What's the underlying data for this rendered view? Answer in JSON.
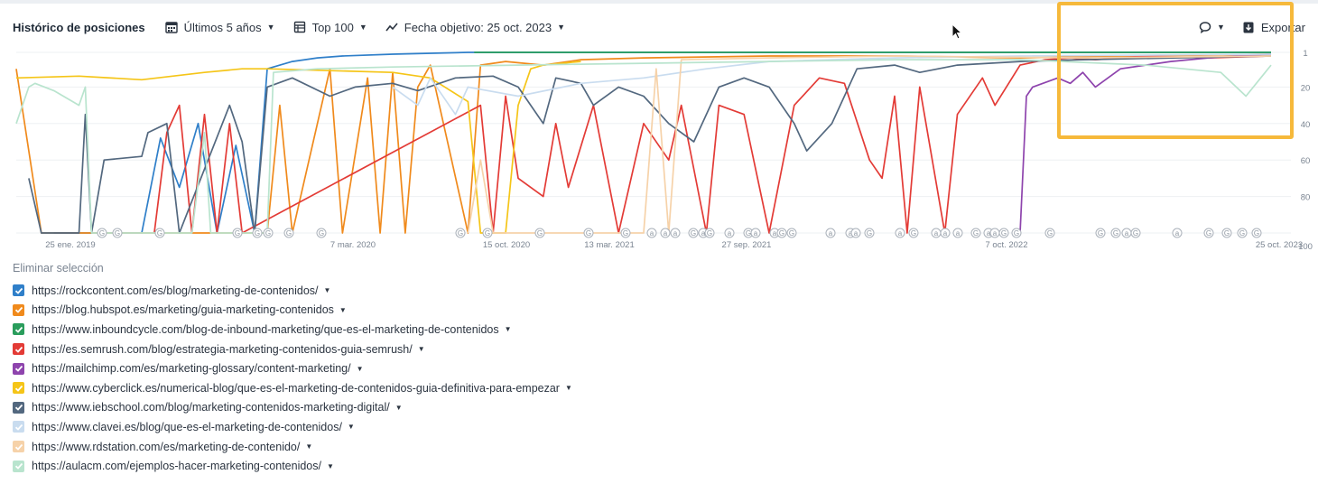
{
  "toolbar": {
    "title": "Histórico de posiciones",
    "period": "Últimos 5 años",
    "top": "Top 100",
    "target_date": "Fecha objetivo: 25 oct. 2023",
    "export_label": "Exportar",
    "icons": [
      "calendar-icon",
      "table-icon",
      "trend-icon",
      "comment-icon",
      "download-icon"
    ]
  },
  "chart_data": {
    "type": "line",
    "x_ticks": [
      "25 ene. 2019",
      "7 mar. 2020",
      "15 oct. 2020",
      "13 mar. 2021",
      "27 sep. 2021",
      "7 oct. 2022",
      "25 oct. 2023"
    ],
    "y_ticks": [
      "1",
      "20",
      "40",
      "60",
      "80",
      "100"
    ],
    "y_inverted": true,
    "ylim": [
      1,
      100
    ],
    "series": [
      {
        "name": "https://rockcontent.com/es/blog/marketing-de-contenidos/",
        "color": "#2f7fc9",
        "points": [
          [
            0.03,
            100
          ],
          [
            0.1,
            100
          ],
          [
            0.115,
            48
          ],
          [
            0.13,
            75
          ],
          [
            0.145,
            40
          ],
          [
            0.16,
            100
          ],
          [
            0.175,
            52
          ],
          [
            0.19,
            100
          ],
          [
            0.2,
            10
          ],
          [
            0.22,
            6
          ],
          [
            0.24,
            4
          ],
          [
            0.26,
            3
          ],
          [
            0.3,
            2
          ],
          [
            0.36,
            1
          ],
          [
            1,
            1
          ]
        ]
      },
      {
        "name": "https://blog.hubspot.es/marketing/guia-marketing-contenidos",
        "color": "#f08a1c",
        "points": [
          [
            0.0,
            10
          ],
          [
            0.02,
            100
          ],
          [
            0.2,
            100
          ],
          [
            0.21,
            30
          ],
          [
            0.22,
            100
          ],
          [
            0.25,
            10
          ],
          [
            0.26,
            100
          ],
          [
            0.28,
            15
          ],
          [
            0.29,
            100
          ],
          [
            0.3,
            12
          ],
          [
            0.31,
            100
          ],
          [
            0.32,
            20
          ],
          [
            0.33,
            8
          ],
          [
            0.36,
            100
          ],
          [
            0.37,
            8
          ],
          [
            0.39,
            6
          ],
          [
            0.42,
            8
          ],
          [
            0.45,
            5
          ],
          [
            0.5,
            4
          ],
          [
            0.6,
            3
          ],
          [
            0.7,
            3
          ],
          [
            0.8,
            4
          ],
          [
            0.9,
            3
          ],
          [
            1,
            2
          ]
        ]
      },
      {
        "name": "https://www.inboundcycle.com/blog-de-inbound-marketing/que-es-el-marketing-de-contenidos",
        "color": "#2a9d5c",
        "points": [
          [
            0.365,
            1
          ],
          [
            0.45,
            1
          ],
          [
            0.6,
            1
          ],
          [
            0.8,
            1
          ],
          [
            0.9,
            1
          ],
          [
            1,
            1
          ]
        ]
      },
      {
        "name": "https://es.semrush.com/blog/estrategia-marketing-contenidos-guia-semrush/",
        "color": "#e33b36",
        "points": [
          [
            0.11,
            100
          ],
          [
            0.12,
            45
          ],
          [
            0.13,
            30
          ],
          [
            0.14,
            100
          ],
          [
            0.15,
            35
          ],
          [
            0.16,
            100
          ],
          [
            0.17,
            40
          ],
          [
            0.18,
            100
          ],
          [
            0.37,
            30
          ],
          [
            0.38,
            100
          ],
          [
            0.39,
            25
          ],
          [
            0.4,
            70
          ],
          [
            0.42,
            80
          ],
          [
            0.43,
            40
          ],
          [
            0.44,
            75
          ],
          [
            0.46,
            30
          ],
          [
            0.48,
            100
          ],
          [
            0.5,
            40
          ],
          [
            0.52,
            60
          ],
          [
            0.53,
            30
          ],
          [
            0.55,
            100
          ],
          [
            0.56,
            30
          ],
          [
            0.58,
            35
          ],
          [
            0.6,
            100
          ],
          [
            0.62,
            30
          ],
          [
            0.64,
            15
          ],
          [
            0.66,
            18
          ],
          [
            0.68,
            60
          ],
          [
            0.69,
            70
          ],
          [
            0.7,
            25
          ],
          [
            0.71,
            100
          ],
          [
            0.72,
            20
          ],
          [
            0.74,
            100
          ],
          [
            0.75,
            35
          ],
          [
            0.77,
            15
          ],
          [
            0.78,
            30
          ],
          [
            0.8,
            8
          ],
          [
            0.82,
            5
          ],
          [
            0.84,
            4
          ],
          [
            0.86,
            5
          ],
          [
            0.9,
            3
          ],
          [
            0.95,
            4
          ],
          [
            1,
            3
          ]
        ]
      },
      {
        "name": "https://mailchimp.com/es/marketing-glossary/content-marketing/",
        "color": "#8e44ad",
        "points": [
          [
            0.8,
            100
          ],
          [
            0.805,
            25
          ],
          [
            0.81,
            20
          ],
          [
            0.83,
            15
          ],
          [
            0.84,
            18
          ],
          [
            0.85,
            12
          ],
          [
            0.86,
            20
          ],
          [
            0.88,
            10
          ],
          [
            0.9,
            8
          ],
          [
            0.92,
            6
          ],
          [
            0.95,
            4
          ],
          [
            0.97,
            3
          ],
          [
            1,
            2
          ]
        ]
      },
      {
        "name": "https://www.cyberclick.es/numerical-blog/que-es-el-marketing-de-contenidos-guia-definitiva-para-empezar",
        "color": "#f5c518",
        "points": [
          [
            0.0,
            15
          ],
          [
            0.05,
            14
          ],
          [
            0.1,
            16
          ],
          [
            0.15,
            12
          ],
          [
            0.18,
            10
          ],
          [
            0.2,
            10
          ],
          [
            0.3,
            12
          ],
          [
            0.33,
            15
          ],
          [
            0.36,
            28
          ],
          [
            0.37,
            100
          ],
          [
            0.38,
            100
          ],
          [
            0.39,
            100
          ],
          [
            0.4,
            30
          ],
          [
            0.41,
            10
          ],
          [
            0.42,
            8
          ],
          [
            0.45,
            6
          ]
        ]
      },
      {
        "name": "https://www.iebschool.com/blog/marketing-contenidos-marketing-digital/",
        "color": "#53687f",
        "points": [
          [
            0.01,
            70
          ],
          [
            0.02,
            100
          ],
          [
            0.05,
            100
          ],
          [
            0.055,
            35
          ],
          [
            0.06,
            100
          ],
          [
            0.07,
            60
          ],
          [
            0.1,
            58
          ],
          [
            0.105,
            45
          ],
          [
            0.12,
            40
          ],
          [
            0.13,
            100
          ],
          [
            0.17,
            30
          ],
          [
            0.18,
            50
          ],
          [
            0.19,
            100
          ],
          [
            0.2,
            20
          ],
          [
            0.22,
            15
          ],
          [
            0.25,
            25
          ],
          [
            0.27,
            20
          ],
          [
            0.3,
            18
          ],
          [
            0.32,
            22
          ],
          [
            0.35,
            15
          ],
          [
            0.38,
            14
          ],
          [
            0.4,
            20
          ],
          [
            0.42,
            40
          ],
          [
            0.43,
            15
          ],
          [
            0.45,
            18
          ],
          [
            0.46,
            30
          ],
          [
            0.48,
            20
          ],
          [
            0.5,
            25
          ],
          [
            0.52,
            40
          ],
          [
            0.54,
            50
          ],
          [
            0.56,
            20
          ],
          [
            0.58,
            15
          ],
          [
            0.6,
            20
          ],
          [
            0.62,
            40
          ],
          [
            0.63,
            55
          ],
          [
            0.65,
            40
          ],
          [
            0.67,
            10
          ],
          [
            0.7,
            8
          ],
          [
            0.72,
            12
          ],
          [
            0.75,
            8
          ],
          [
            0.8,
            6
          ],
          [
            0.85,
            5
          ],
          [
            1,
            3
          ]
        ]
      },
      {
        "name": "https://www.clavei.es/blog/que-es-el-marketing-de-contenidos/",
        "color": "#c9dcef",
        "points": [
          [
            0.3,
            20
          ],
          [
            0.32,
            30
          ],
          [
            0.33,
            15
          ],
          [
            0.35,
            35
          ],
          [
            0.36,
            20
          ],
          [
            0.4,
            25
          ],
          [
            0.45,
            18
          ],
          [
            0.5,
            15
          ],
          [
            0.55,
            10
          ],
          [
            0.6,
            6
          ],
          [
            0.7,
            4
          ],
          [
            0.8,
            3
          ],
          [
            1,
            2
          ]
        ]
      },
      {
        "name": "https://www.rdstation.com/es/marketing-de-contenido/",
        "color": "#f6d2a9",
        "points": [
          [
            0.36,
            100
          ],
          [
            0.37,
            60
          ],
          [
            0.38,
            100
          ],
          [
            0.4,
            100
          ],
          [
            0.5,
            100
          ],
          [
            0.51,
            10
          ],
          [
            0.52,
            100
          ],
          [
            0.53,
            5
          ],
          [
            0.6,
            4
          ],
          [
            0.7,
            3
          ],
          [
            0.85,
            4
          ],
          [
            1,
            3
          ]
        ]
      },
      {
        "name": "https://aulacm.com/ejemplos-hacer-marketing-contenidos/",
        "color": "#b9e4ce",
        "points": [
          [
            0.0,
            40
          ],
          [
            0.01,
            20
          ],
          [
            0.015,
            18
          ],
          [
            0.03,
            22
          ],
          [
            0.05,
            30
          ],
          [
            0.055,
            20
          ],
          [
            0.06,
            100
          ],
          [
            0.14,
            100
          ],
          [
            0.15,
            45
          ],
          [
            0.155,
            100
          ],
          [
            0.2,
            100
          ],
          [
            0.205,
            12
          ],
          [
            0.24,
            10
          ],
          [
            0.3,
            9
          ],
          [
            0.4,
            8
          ],
          [
            0.5,
            7
          ],
          [
            0.6,
            6
          ],
          [
            0.7,
            5
          ],
          [
            0.8,
            5
          ],
          [
            0.9,
            8
          ],
          [
            0.96,
            12
          ],
          [
            0.98,
            25
          ],
          [
            1,
            8
          ]
        ]
      }
    ],
    "annotations": [
      "G",
      "a"
    ]
  },
  "clear_selection": "Eliminar selección"
}
